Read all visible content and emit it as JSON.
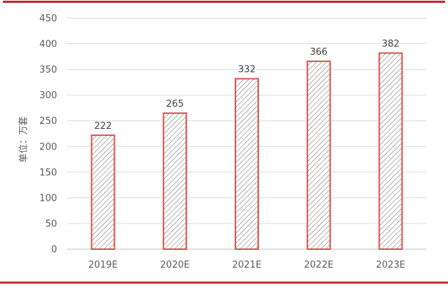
{
  "chart_data": {
    "type": "bar",
    "categories": [
      "2019E",
      "2020E",
      "2021E",
      "2022E",
      "2023E"
    ],
    "values": [
      222,
      265,
      332,
      366,
      382
    ],
    "ylabel": "单位：万套",
    "ylim": [
      0,
      450
    ],
    "yticks": [
      0,
      50,
      100,
      150,
      200,
      250,
      300,
      350,
      400,
      450
    ],
    "grid": true,
    "bar_fill": "hatched",
    "bar_color": "#d9534f",
    "hatch_color": "#666666",
    "frame_color": "#c0282d"
  }
}
